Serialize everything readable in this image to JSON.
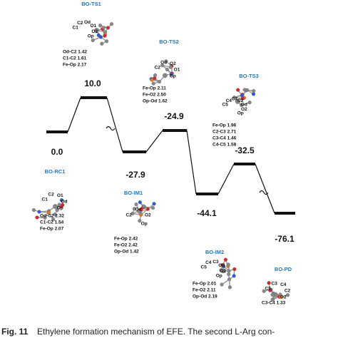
{
  "states": [
    {
      "name": "BO-RC1",
      "energy": "0.0",
      "geometry": [
        "Od-C2 2.32",
        "C1-C2 1.54",
        "Fe-Op 2.07"
      ],
      "atoms": [
        "C1",
        "C2",
        "O1",
        "Od",
        "Op"
      ]
    },
    {
      "name": "BO-TS1",
      "energy": "10.0",
      "geometry": [
        "Od-C2 1.42",
        "C1-C2 1.61",
        "Fe-Op 2.17"
      ],
      "atoms": [
        "C1",
        "C2",
        "Od",
        "O1",
        "O2",
        "Op"
      ]
    },
    {
      "name": "BO-IM1",
      "energy": "-27.9",
      "geometry": [
        "Fe-Op 2.42",
        "Fe-O2 2.42",
        "Op-Od 1.42"
      ],
      "atoms": [
        "C2",
        "Od",
        "O2",
        "Op"
      ]
    },
    {
      "name": "BO-TS2",
      "energy": "-24.9",
      "geometry": [
        "Fe-Op 2.11",
        "Fe-O2 2.50",
        "Op-Od 1.62"
      ],
      "atoms": [
        "C2",
        "Od",
        "O2",
        "O1",
        "Op"
      ]
    },
    {
      "name": "BO-IM2",
      "energy": "-44.1",
      "geometry": [
        "Fe-Op 2.01",
        "Fe-O2 2.11",
        "Op-Od 2.19"
      ],
      "atoms": [
        "C5",
        "C4",
        "C3",
        "Od",
        "O2",
        "Op"
      ]
    },
    {
      "name": "BO-TS3",
      "energy": "-32.5",
      "geometry": [
        "Fe-Op 1.96",
        "C2-C3 2.71",
        "C3-C4 1.46",
        "C4-C5 1.58"
      ],
      "atoms": [
        "C5",
        "C4",
        "C3",
        "C2",
        "Od",
        "O2",
        "Op"
      ]
    },
    {
      "name": "BO-PD",
      "energy": "-76.1",
      "geometry": [
        "C3-C4 1.33"
      ],
      "atoms": [
        "C5",
        "C3",
        "C4",
        "C2",
        "O2"
      ]
    }
  ],
  "caption": {
    "label": "Fig. 11",
    "text": "Ethylene formation mechanism of EFE. The second L-Arg con-"
  }
}
